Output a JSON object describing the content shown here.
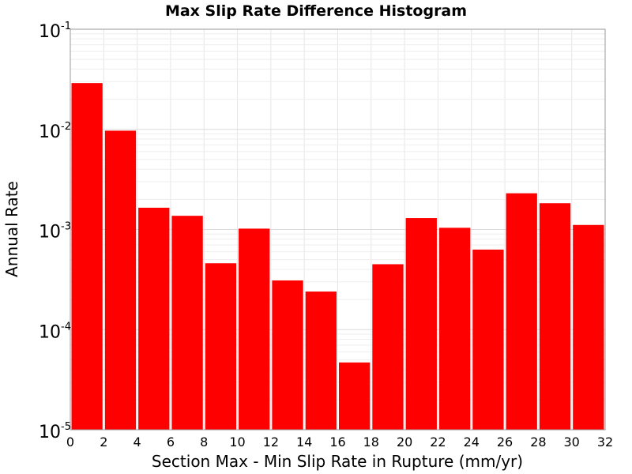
{
  "chart_data": {
    "type": "bar",
    "title": "Max Slip Rate Difference Histogram",
    "xlabel": "Section Max - Min Slip Rate in Rupture (mm/yr)",
    "ylabel": "Annual Rate",
    "yscale": "log",
    "xlim": [
      0,
      32
    ],
    "ylim": [
      1e-05,
      0.1
    ],
    "bar_color": "#ff0000",
    "grid": true,
    "x_ticks": [
      "0",
      "2",
      "4",
      "6",
      "8",
      "10",
      "12",
      "14",
      "16",
      "18",
      "20",
      "22",
      "24",
      "26",
      "28",
      "30",
      "32"
    ],
    "y_ticks": [
      {
        "base": "10",
        "exp": "-1",
        "value": 0.1
      },
      {
        "base": "10",
        "exp": "-2",
        "value": 0.01
      },
      {
        "base": "10",
        "exp": "-3",
        "value": 0.001
      },
      {
        "base": "10",
        "exp": "-4",
        "value": 0.0001
      },
      {
        "base": "10",
        "exp": "-5",
        "value": 1e-05
      }
    ],
    "bins": [
      {
        "x0": 0,
        "x1": 2,
        "value": 0.029
      },
      {
        "x0": 2,
        "x1": 4,
        "value": 0.0097
      },
      {
        "x0": 4,
        "x1": 6,
        "value": 0.00165
      },
      {
        "x0": 6,
        "x1": 8,
        "value": 0.00137
      },
      {
        "x0": 8,
        "x1": 10,
        "value": 0.00046
      },
      {
        "x0": 10,
        "x1": 12,
        "value": 0.00102
      },
      {
        "x0": 12,
        "x1": 14,
        "value": 0.00031
      },
      {
        "x0": 14,
        "x1": 16,
        "value": 0.00024
      },
      {
        "x0": 16,
        "x1": 18,
        "value": 4.7e-05
      },
      {
        "x0": 18,
        "x1": 20,
        "value": 0.00045
      },
      {
        "x0": 20,
        "x1": 22,
        "value": 0.0013
      },
      {
        "x0": 22,
        "x1": 24,
        "value": 0.00104
      },
      {
        "x0": 24,
        "x1": 26,
        "value": 0.00063
      },
      {
        "x0": 26,
        "x1": 28,
        "value": 0.0023
      },
      {
        "x0": 28,
        "x1": 30,
        "value": 0.00183
      },
      {
        "x0": 30,
        "x1": 32,
        "value": 0.00111
      }
    ]
  }
}
